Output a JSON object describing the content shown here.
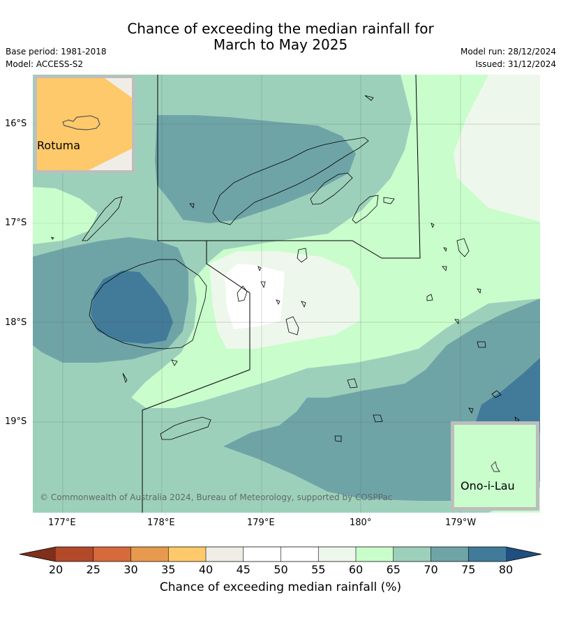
{
  "title": {
    "line1": "Chance of exceeding the median rainfall for",
    "line2": "March to May 2025"
  },
  "meta_left": {
    "base_period": "Base period: 1981-2018",
    "model": "Model: ACCESS-S2"
  },
  "meta_right": {
    "model_run": "Model run: 28/12/2024",
    "issued": "Issued: 31/12/2024"
  },
  "axes": {
    "x_ticks": [
      "177°E",
      "178°E",
      "179°E",
      "180°",
      "179°W"
    ],
    "y_ticks": [
      "16°S",
      "17°S",
      "18°S",
      "19°S"
    ]
  },
  "insets": {
    "rotuma": {
      "label": "Rotuma",
      "value_range": "35-40",
      "fill": "#fec96a"
    },
    "ono_i_lau": {
      "label": "Ono-i-Lau",
      "value_range": "60-65",
      "fill": "#c9fdcc"
    }
  },
  "copyright": "© Commonwealth of Australia 2024, Bureau of Meteorology, supported by COSPPac",
  "colorbar": {
    "title": "Chance of exceeding median rainfall (%)",
    "ticks": [
      "20",
      "25",
      "30",
      "35",
      "40",
      "45",
      "50",
      "55",
      "60",
      "65",
      "70",
      "75",
      "80"
    ],
    "under_color": "#7f2f1c",
    "over_color": "#1f4f7e",
    "colors": [
      "#b24a2a",
      "#d56a3c",
      "#e79a4e",
      "#fec96a",
      "#efede6",
      "#ffffff",
      "#ffffff",
      "#eef7ec",
      "#c9fdcc",
      "#9dd0bb",
      "#6fa4a7",
      "#427b9a"
    ]
  },
  "colors": {
    "c40_45": "#efede6",
    "c45_50": "#ffffff",
    "c55_60": "#eef7ec",
    "c60_65": "#c9fdcc",
    "c65_70": "#9dd0bb",
    "c70_75": "#6fa4a7",
    "c75_80": "#427b9a"
  }
}
